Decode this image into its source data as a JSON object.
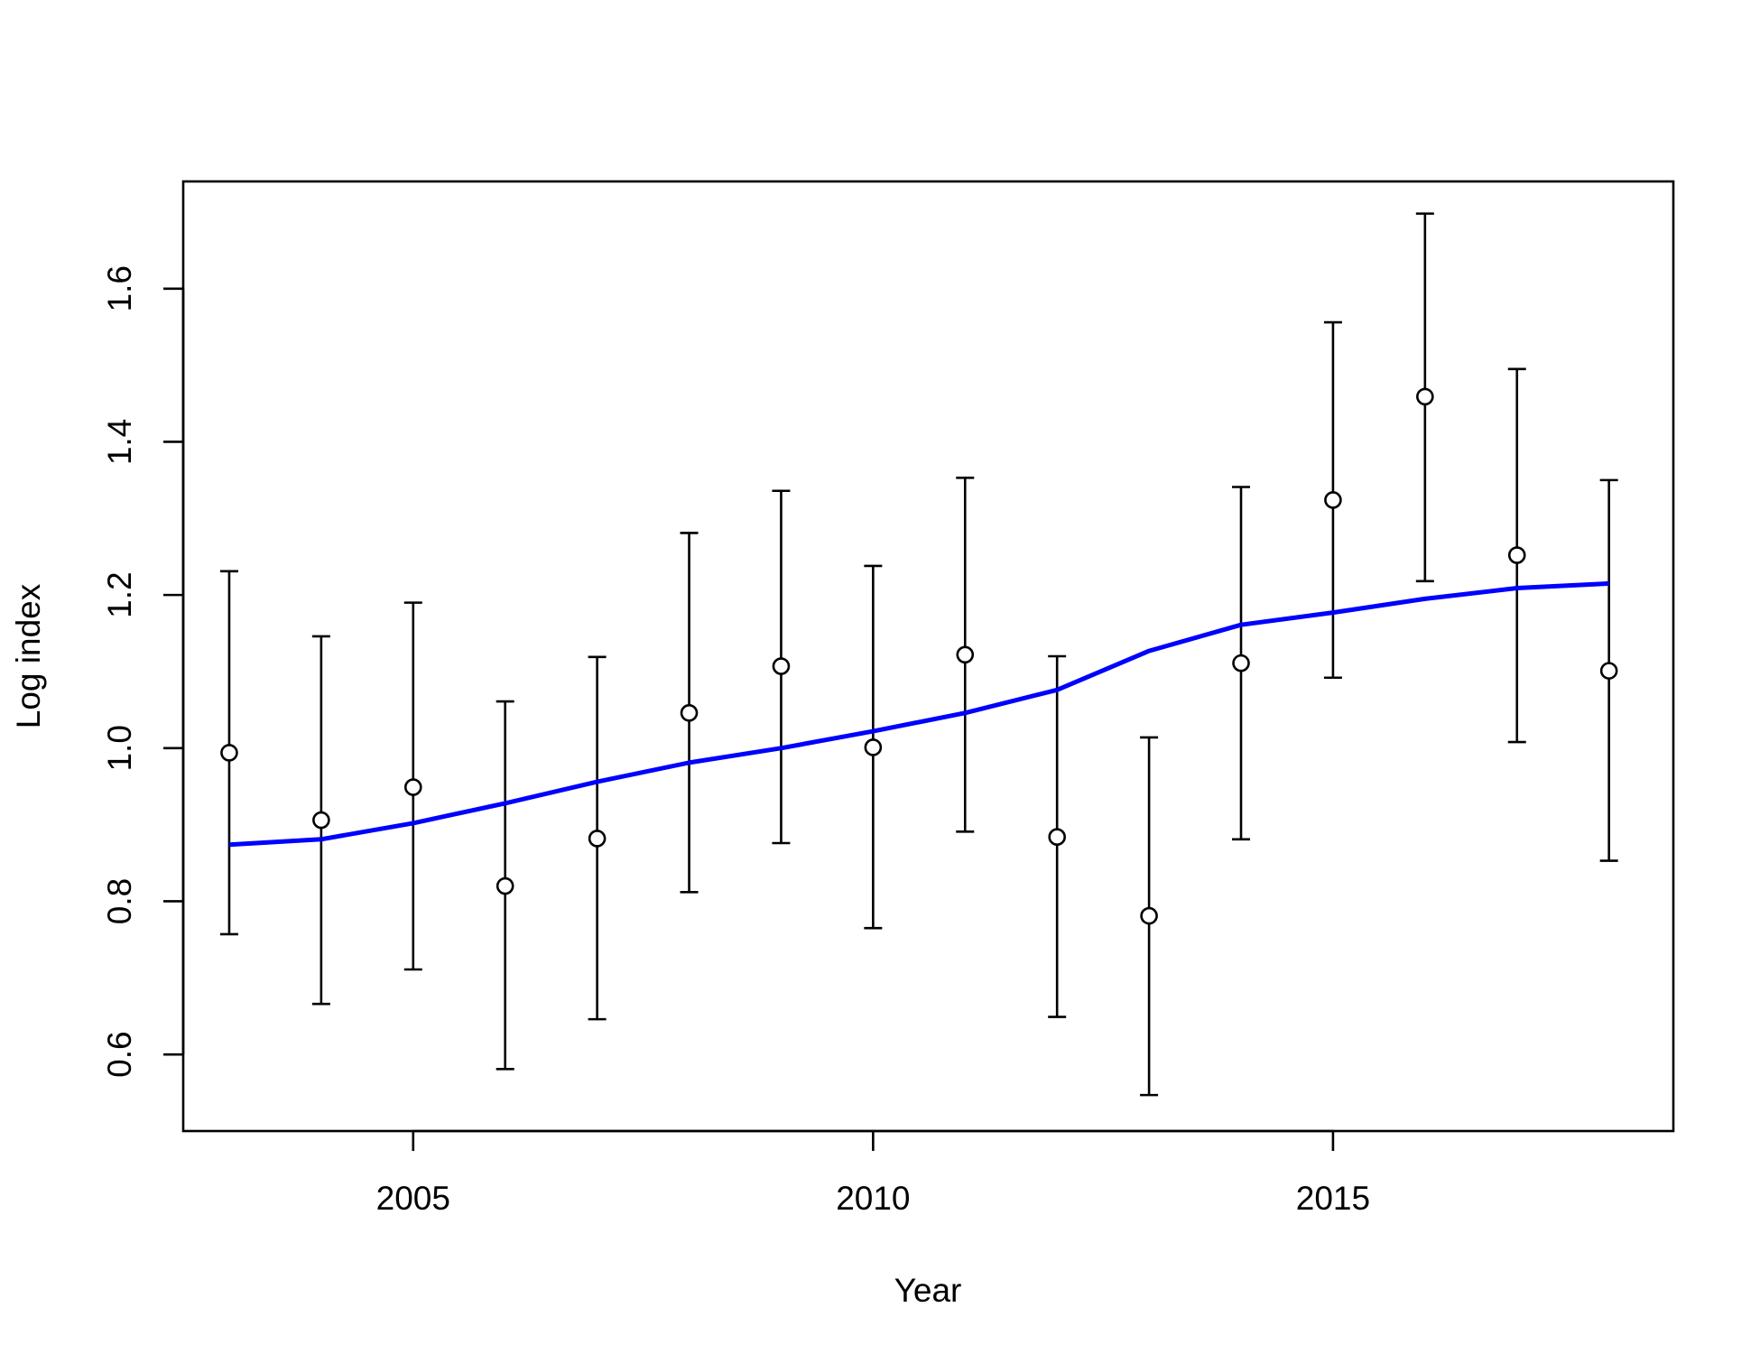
{
  "chart_data": {
    "type": "scatter",
    "title": "",
    "xlabel": "Year",
    "ylabel": "Log index",
    "xlim": [
      2002.5,
      2018.7
    ],
    "ylim": [
      0.5,
      1.74
    ],
    "x_ticks": [
      2005,
      2010,
      2015
    ],
    "x_tick_labels": [
      "2005",
      "2010",
      "2015"
    ],
    "y_ticks": [
      0.6,
      0.8,
      1.0,
      1.2,
      1.4,
      1.6
    ],
    "y_tick_labels": [
      "0.6",
      "0.8",
      "1.0",
      "1.2",
      "1.4",
      "1.6"
    ],
    "grid": false,
    "legend": "none",
    "colors": {
      "points": "#000000",
      "fit": "#0000ff",
      "errorbars": "#000000"
    },
    "series": [
      {
        "kind": "points-with-errorbars",
        "x": [
          2003,
          2004,
          2005,
          2006,
          2007,
          2008,
          2009,
          2010,
          2011,
          2012,
          2013,
          2014,
          2015,
          2016,
          2017,
          2018
        ],
        "y": [
          0.994,
          0.906,
          0.949,
          0.82,
          0.882,
          1.046,
          1.107,
          1.001,
          1.122,
          0.884,
          0.781,
          1.111,
          1.324,
          1.459,
          1.252,
          1.101
        ],
        "lower": [
          0.757,
          0.666,
          0.711,
          0.581,
          0.646,
          0.812,
          0.876,
          0.765,
          0.891,
          0.649,
          0.547,
          0.881,
          1.092,
          1.218,
          1.008,
          0.853
        ],
        "upper": [
          1.231,
          1.146,
          1.19,
          1.061,
          1.119,
          1.281,
          1.336,
          1.238,
          1.353,
          1.12,
          1.014,
          1.341,
          1.556,
          1.698,
          1.495,
          1.35
        ]
      },
      {
        "kind": "fitted-line",
        "x": [
          2003,
          2004,
          2005,
          2006,
          2007,
          2008,
          2009,
          2010,
          2011,
          2012,
          2013,
          2014,
          2015,
          2016,
          2017,
          2018
        ],
        "y": [
          0.874,
          0.881,
          0.902,
          0.928,
          0.956,
          0.981,
          1.0,
          1.022,
          1.046,
          1.076,
          1.127,
          1.161,
          1.177,
          1.195,
          1.209,
          1.215
        ]
      }
    ]
  }
}
